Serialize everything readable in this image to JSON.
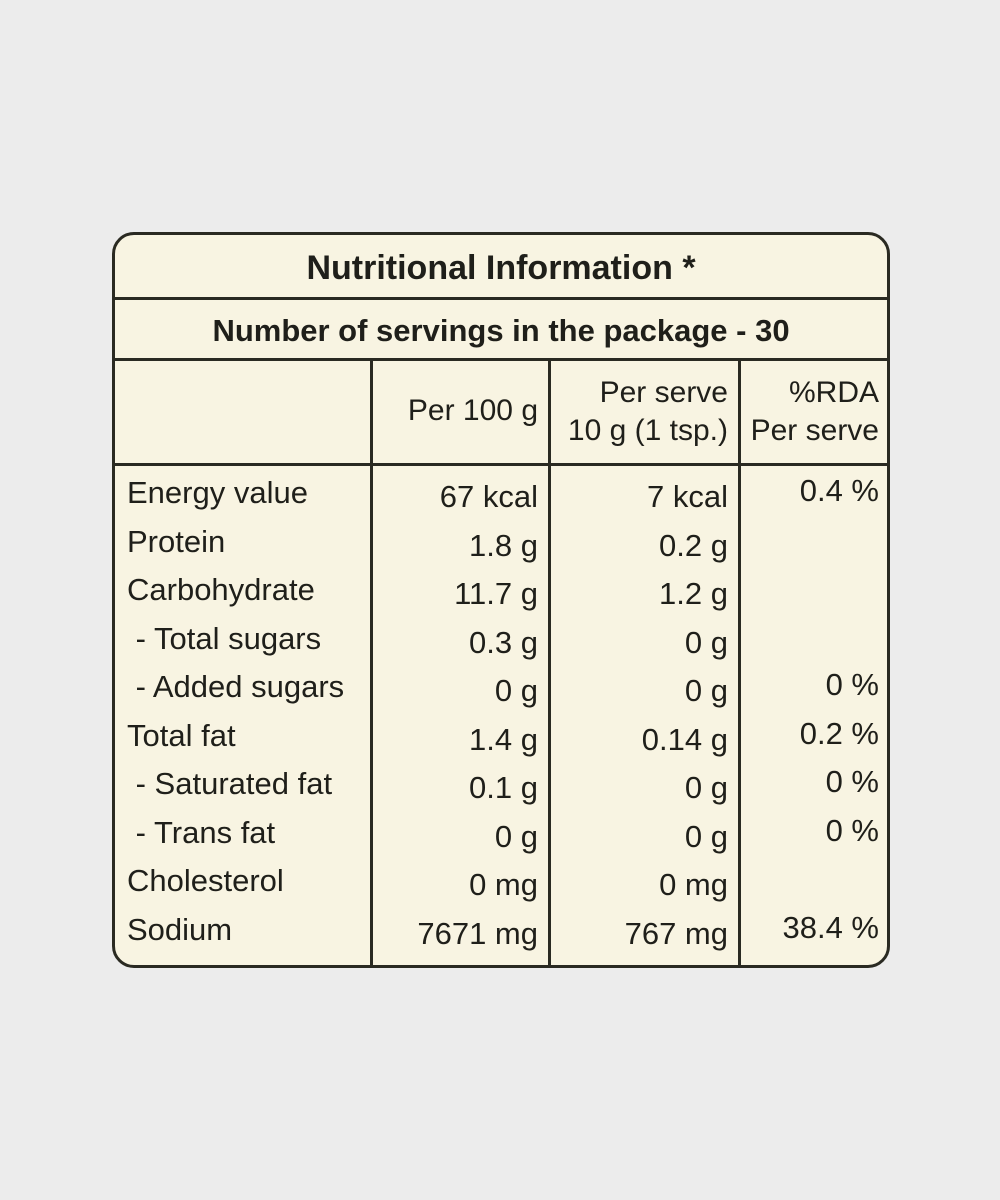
{
  "title": "Nutritional Information *",
  "servings": "Number of servings in the package - 30",
  "columns": {
    "per_100g": [
      "Per 100 g"
    ],
    "per_serve": [
      "Per serve",
      "10 g (1 tsp.)"
    ],
    "rda": [
      "%RDA",
      "Per serve"
    ]
  },
  "rows": [
    {
      "nutrient": "Energy value",
      "per_100g": "67 kcal",
      "per_serve": "7 kcal",
      "rda": "0.4 %"
    },
    {
      "nutrient": "Protein",
      "per_100g": "1.8 g",
      "per_serve": "0.2 g"
    },
    {
      "nutrient": "Carbohydrate",
      "per_100g": "11.7 g",
      "per_serve": "1.2 g"
    },
    {
      "nutrient": " - Total sugars",
      "per_100g": "0.3 g",
      "per_serve": "0 g"
    },
    {
      "nutrient": " - Added sugars",
      "per_100g": "0 g",
      "per_serve": "0 g",
      "rda": "0 %"
    },
    {
      "nutrient": "Total fat",
      "per_100g": "1.4 g",
      "per_serve": "0.14 g",
      "rda": "0.2 %"
    },
    {
      "nutrient": " - Saturated fat",
      "per_100g": "0.1 g",
      "per_serve": "0 g",
      "rda": "0 %"
    },
    {
      "nutrient": " - Trans fat",
      "per_100g": "0 g",
      "per_serve": "0 g",
      "rda": "0 %"
    },
    {
      "nutrient": "Cholesterol",
      "per_100g": "0 mg",
      "per_serve": "0 mg"
    },
    {
      "nutrient": "Sodium",
      "per_100g": "7671 mg",
      "per_serve": "767 mg",
      "rda": "38.4 %"
    }
  ]
}
